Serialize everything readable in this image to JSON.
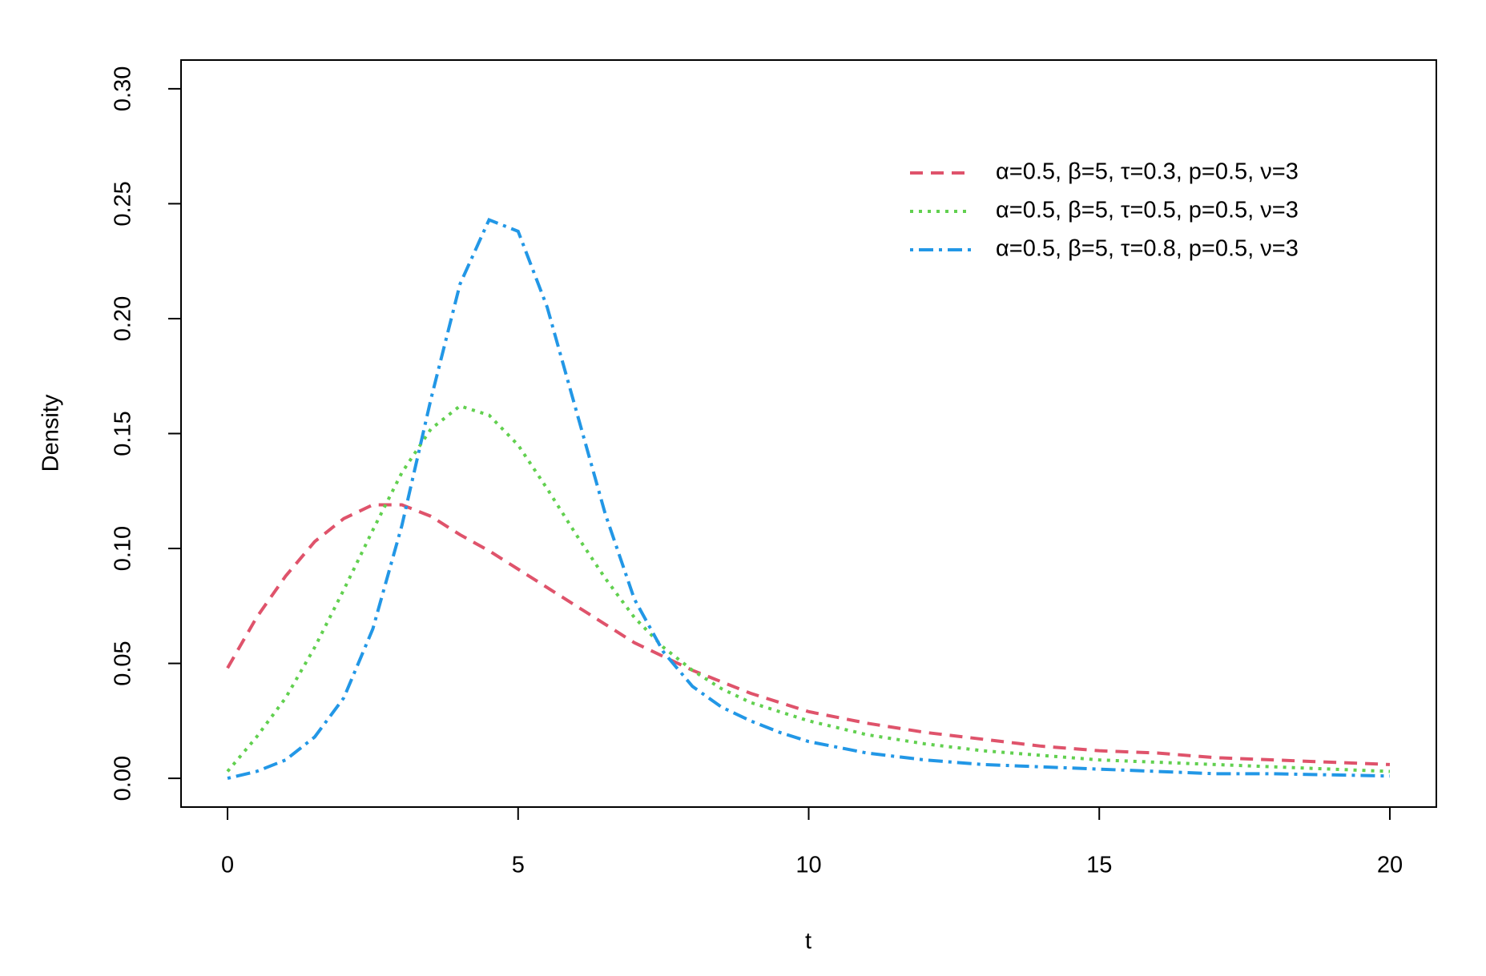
{
  "chart_data": {
    "type": "line",
    "xlabel": "t",
    "ylabel": "Density",
    "x": [
      0,
      0.5,
      1,
      1.5,
      2,
      2.5,
      3,
      3.5,
      4,
      4.5,
      5,
      5.5,
      6,
      6.5,
      7,
      7.5,
      8,
      8.5,
      9,
      9.5,
      10,
      11,
      12,
      13,
      14,
      15,
      16,
      17,
      18,
      19,
      20
    ],
    "series": [
      {
        "name": "α=0.5, β=5, τ=0.3, p=0.5, ν=3",
        "color": "#DF536B",
        "dash": "dashed",
        "values": [
          0.048,
          0.07,
          0.088,
          0.103,
          0.113,
          0.119,
          0.119,
          0.114,
          0.106,
          0.099,
          0.091,
          0.083,
          0.075,
          0.067,
          0.059,
          0.053,
          0.047,
          0.042,
          0.037,
          0.033,
          0.029,
          0.024,
          0.02,
          0.017,
          0.014,
          0.012,
          0.011,
          0.009,
          0.008,
          0.007,
          0.006
        ]
      },
      {
        "name": "α=0.5, β=5, τ=0.5, p=0.5, ν=3",
        "color": "#61D04F",
        "dash": "dotted",
        "values": [
          0.003,
          0.018,
          0.035,
          0.057,
          0.082,
          0.108,
          0.133,
          0.152,
          0.162,
          0.158,
          0.145,
          0.126,
          0.106,
          0.087,
          0.07,
          0.057,
          0.047,
          0.039,
          0.033,
          0.029,
          0.025,
          0.019,
          0.015,
          0.012,
          0.01,
          0.008,
          0.007,
          0.006,
          0.005,
          0.004,
          0.003
        ]
      },
      {
        "name": "α=0.5, β=5, τ=0.8, p=0.5, ν=3",
        "color": "#2297E6",
        "dash": "dotdash",
        "values": [
          0,
          0.003,
          0.008,
          0.018,
          0.035,
          0.065,
          0.11,
          0.165,
          0.215,
          0.243,
          0.238,
          0.205,
          0.16,
          0.115,
          0.078,
          0.055,
          0.04,
          0.031,
          0.025,
          0.02,
          0.016,
          0.011,
          0.008,
          0.006,
          0.005,
          0.004,
          0.003,
          0.002,
          0.002,
          0.0015,
          0.001
        ]
      }
    ],
    "xlim": [
      -0.8,
      20.8
    ],
    "ylim": [
      -0.0125,
      0.3125
    ],
    "xticks": [
      0,
      5,
      10,
      15,
      20
    ],
    "yticks": [
      {
        "value": 0,
        "label": "0.00"
      },
      {
        "value": 0.05,
        "label": "0.05"
      },
      {
        "value": 0.1,
        "label": "0.10"
      },
      {
        "value": 0.15,
        "label": "0.15"
      },
      {
        "value": 0.2,
        "label": "0.20"
      },
      {
        "value": 0.25,
        "label": "0.25"
      },
      {
        "value": 0.3,
        "label": "0.30"
      }
    ],
    "legend": "topright"
  }
}
